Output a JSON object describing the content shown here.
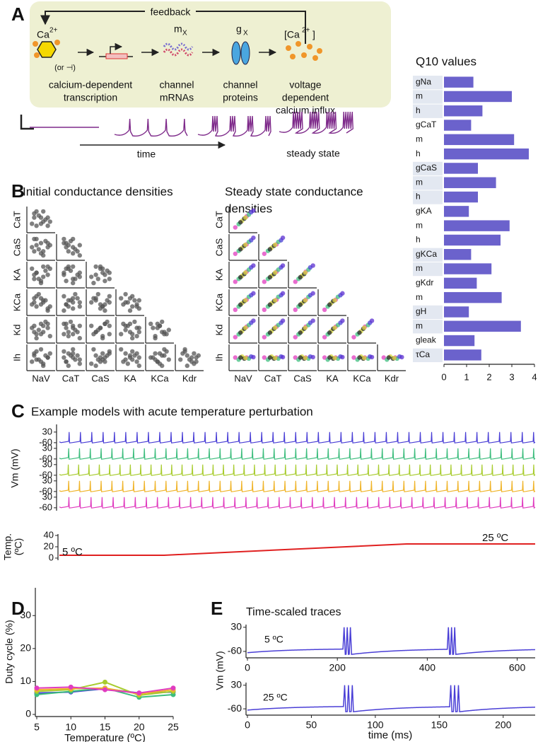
{
  "panel_labels": [
    "A",
    "B",
    "C",
    "D",
    "E"
  ],
  "diagram": {
    "feedback": "feedback",
    "calcium": {
      "symbol": "Ca",
      "charge": "2+",
      "note": "(or ⊣)"
    },
    "mrna": {
      "symbol": "m",
      "subscript": "X"
    },
    "protein": {
      "symbol": "g",
      "subscript": "X"
    },
    "influx": {
      "open": "[Ca",
      "charge": "2+",
      "close": "]"
    },
    "captions": [
      [
        "calcium-dependent",
        "transcription"
      ],
      [
        "channel",
        "mRNAs"
      ],
      [
        "channel",
        "proteins"
      ],
      [
        "voltage",
        "dependent",
        "calcium influx"
      ]
    ],
    "time": "time",
    "steady_state": "steady state"
  },
  "chart_data": [
    {
      "type": "bar",
      "orientation": "horizontal",
      "title": "Q10 values",
      "categories": [
        "gNa",
        "m",
        "h",
        "gCaT",
        "m",
        "h",
        "gCaS",
        "m",
        "h",
        "gKA",
        "m",
        "h",
        "gKCa",
        "m",
        "gKdr",
        "m",
        "gH",
        "m",
        "gleak",
        "τCa"
      ],
      "values": [
        1.3,
        3.0,
        1.7,
        1.2,
        3.1,
        3.75,
        1.5,
        2.3,
        1.5,
        1.1,
        2.9,
        2.5,
        1.2,
        2.1,
        1.45,
        2.55,
        1.1,
        3.4,
        1.35,
        1.65
      ],
      "color": "#6b62cc",
      "xlim": [
        0,
        4
      ],
      "xticks": [
        0,
        1,
        2,
        3,
        4
      ]
    },
    {
      "type": "scatter_matrix",
      "title": [
        "Initial conductance densities"
      ],
      "row_labels": [
        "CaT",
        "CaS",
        "KA",
        "KCa",
        "Kd",
        "Ih"
      ],
      "col_labels": [
        "NaV",
        "CaT",
        "CaS",
        "KA",
        "KCa",
        "Kdr"
      ],
      "color": "#555555",
      "models": [
        [
          0.2,
          0.8,
          0.3,
          0.5,
          0.7,
          0.4,
          0.6
        ],
        [
          0.5,
          0.3,
          0.7,
          0.2,
          0.4,
          0.8,
          0.3
        ],
        [
          0.8,
          0.6,
          0.5,
          0.9,
          0.2,
          0.6,
          0.5
        ],
        [
          0.3,
          0.2,
          0.9,
          0.6,
          0.8,
          0.3,
          0.8
        ],
        [
          0.6,
          0.9,
          0.1,
          0.4,
          0.5,
          0.7,
          0.2
        ],
        [
          0.9,
          0.4,
          0.6,
          0.8,
          0.3,
          0.2,
          0.7
        ],
        [
          0.4,
          0.7,
          0.4,
          0.3,
          0.9,
          0.5,
          0.4
        ],
        [
          0.7,
          0.5,
          0.8,
          0.7,
          0.6,
          0.9,
          0.6
        ],
        [
          0.1,
          0.3,
          0.5,
          0.8,
          0.4,
          0.6,
          0.3
        ],
        [
          0.5,
          0.6,
          0.2,
          0.1,
          0.7,
          0.3,
          0.9
        ],
        [
          0.8,
          0.2,
          0.7,
          0.5,
          0.1,
          0.8,
          0.5
        ],
        [
          0.3,
          0.9,
          0.6,
          0.6,
          0.3,
          0.1,
          0.4
        ],
        [
          0.6,
          0.4,
          0.3,
          0.9,
          0.6,
          0.4,
          0.1
        ],
        [
          0.2,
          0.6,
          0.9,
          0.3,
          0.5,
          0.7,
          0.7
        ]
      ]
    },
    {
      "type": "scatter_matrix",
      "title": [
        "Steady state conductance",
        "densities"
      ],
      "row_labels": [
        "CaT",
        "CaS",
        "KA",
        "KCa",
        "Kd",
        "Ih"
      ],
      "col_labels": [
        "NaV",
        "CaT",
        "CaS",
        "KA",
        "KCa",
        "Kdr"
      ],
      "colors": [
        "#e03cbf",
        "#3dbd7d",
        "#d7d93a",
        "#222222",
        "#e03cbf",
        "#3dbd7d",
        "#4a3fd6",
        "#222222",
        "#d7d93a",
        "#5b2fd0"
      ],
      "models": [
        [
          0.15,
          0.12,
          0.18,
          0.16,
          0.14,
          0.15,
          0.5
        ],
        [
          0.3,
          0.28,
          0.32,
          0.3,
          0.3,
          0.29,
          0.4
        ],
        [
          0.45,
          0.44,
          0.47,
          0.45,
          0.46,
          0.44,
          0.55
        ],
        [
          0.55,
          0.55,
          0.57,
          0.54,
          0.56,
          0.56,
          0.45
        ],
        [
          0.65,
          0.66,
          0.64,
          0.65,
          0.63,
          0.66,
          0.5
        ],
        [
          0.75,
          0.74,
          0.76,
          0.75,
          0.77,
          0.74,
          0.45
        ],
        [
          0.85,
          0.86,
          0.84,
          0.86,
          0.85,
          0.85,
          0.55
        ],
        [
          0.38,
          0.37,
          0.4,
          0.38,
          0.39,
          0.37,
          0.5
        ],
        [
          0.6,
          0.6,
          0.62,
          0.61,
          0.6,
          0.61,
          0.48
        ],
        [
          0.95,
          0.94,
          0.96,
          0.95,
          0.94,
          0.95,
          0.52
        ]
      ]
    },
    {
      "type": "spike_train",
      "title": "Example models with acute temperature perturbation",
      "ylabel": "Vm (mV)",
      "ylim": [
        -65,
        35
      ],
      "yticks": [
        30,
        -60
      ],
      "series": [
        {
          "color": "#4a3fd6",
          "spikes": 42
        },
        {
          "color": "#3dbd7d",
          "spikes": 44
        },
        {
          "color": "#a8cc2e",
          "spikes": 46
        },
        {
          "color": "#f0b429",
          "spikes": 44
        },
        {
          "color": "#e03cbf",
          "spikes": 43
        }
      ]
    },
    {
      "type": "line",
      "ylabel": [
        "Temp.",
        "(ºC)"
      ],
      "x": [
        0,
        22,
        73,
        100
      ],
      "xlim": [
        0,
        100
      ],
      "values": [
        5,
        5,
        25,
        25
      ],
      "color": "#e02020",
      "ylim": [
        0,
        40
      ],
      "yticks": [
        0,
        20,
        40
      ],
      "annotations": [
        "5 ºC",
        "25 ºC"
      ]
    },
    {
      "type": "line",
      "x": [
        5,
        10,
        15,
        20,
        25
      ],
      "xlim": [
        5,
        25
      ],
      "xticks": [
        5,
        10,
        15,
        20,
        25
      ],
      "ylim": [
        0,
        38
      ],
      "yticks": [
        0,
        10,
        20,
        30
      ],
      "xlabel": "Temperature (ºC)",
      "ylabel": "Duty cycle (%)",
      "series": [
        {
          "color": "#4a3fd6",
          "values": [
            6.5,
            6.8,
            7.8,
            6.5,
            6.8
          ]
        },
        {
          "color": "#3dbd7d",
          "values": [
            6,
            7,
            8,
            5.2,
            6
          ]
        },
        {
          "color": "#a8cc2e",
          "values": [
            7,
            7.5,
            9.8,
            5.8,
            7
          ]
        },
        {
          "color": "#f0b429",
          "values": [
            7.5,
            7.8,
            8,
            6.2,
            7.5
          ]
        },
        {
          "color": "#e03cbf",
          "values": [
            8,
            8.3,
            7.5,
            6.5,
            8
          ]
        }
      ]
    },
    {
      "type": "trace",
      "title": "Time-scaled traces",
      "annotation": "5 ºC",
      "ylabel": "Vm (mV)",
      "color": "#4a3fd6",
      "spike_times": [
        215,
        222,
        229,
        447,
        454,
        461
      ],
      "xlim": [
        0,
        640
      ],
      "xticks": [
        0,
        200,
        400,
        600
      ],
      "ylim": [
        -84,
        40
      ],
      "yticks": [
        30,
        -60
      ]
    },
    {
      "type": "trace",
      "annotation": "25 ºC",
      "xlabel": "time (ms)",
      "color": "#4a3fd6",
      "spike_times": [
        76,
        79,
        82,
        159,
        162,
        165
      ],
      "xlim": [
        0,
        225
      ],
      "xticks": [
        0,
        50,
        100,
        150,
        200
      ],
      "ylim": [
        -84,
        40
      ],
      "yticks": [
        30,
        -60
      ]
    }
  ]
}
